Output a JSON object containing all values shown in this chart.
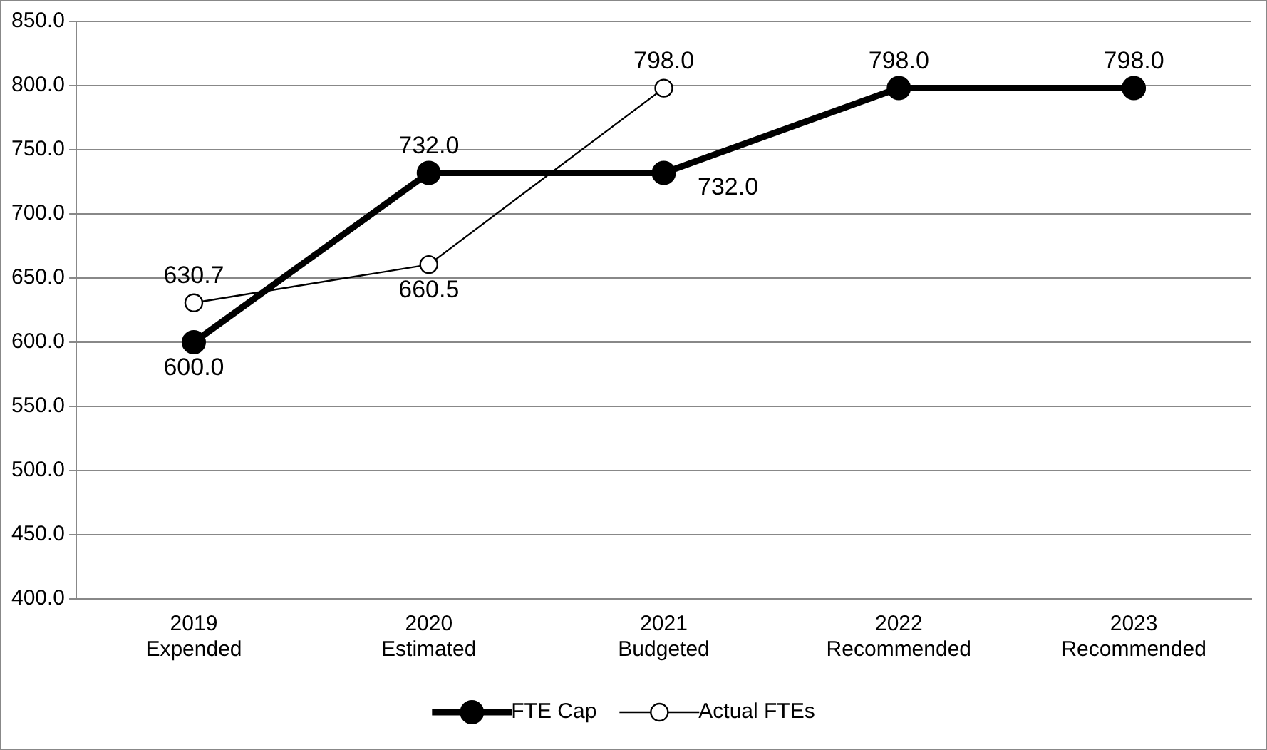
{
  "chart_data": {
    "type": "line",
    "categories": [
      "2019\nExpended",
      "2020\nEstimated",
      "2021\nBudgeted",
      "2022\nRecommended",
      "2023\nRecommended"
    ],
    "series": [
      {
        "name": "FTE Cap",
        "color": "#000000",
        "values": [
          600.0,
          732.0,
          732.0,
          798.0,
          798.0
        ],
        "value_labels": [
          "600.0",
          "732.0",
          "732.0",
          "798.0",
          "798.0"
        ]
      },
      {
        "name": "Actual FTEs",
        "color": "#000000",
        "values": [
          630.7,
          660.5,
          798.0,
          null,
          null
        ],
        "value_labels": [
          "630.7",
          "660.5",
          "798.0",
          null,
          null
        ]
      }
    ],
    "ylim": [
      400,
      850
    ],
    "yticks": [
      {
        "value": 400,
        "label": "400.0"
      },
      {
        "value": 450,
        "label": "450.0"
      },
      {
        "value": 500,
        "label": "500.0"
      },
      {
        "value": 550,
        "label": "550.0"
      },
      {
        "value": 600,
        "label": "600.0"
      },
      {
        "value": 650,
        "label": "650.0"
      },
      {
        "value": 700,
        "label": "700.0"
      },
      {
        "value": 750,
        "label": "750.0"
      },
      {
        "value": 800,
        "label": "800.0"
      },
      {
        "value": 850,
        "label": "850.0"
      }
    ],
    "grid": "y",
    "legend": "bottom",
    "marker": "circle",
    "line_style": "solid"
  }
}
